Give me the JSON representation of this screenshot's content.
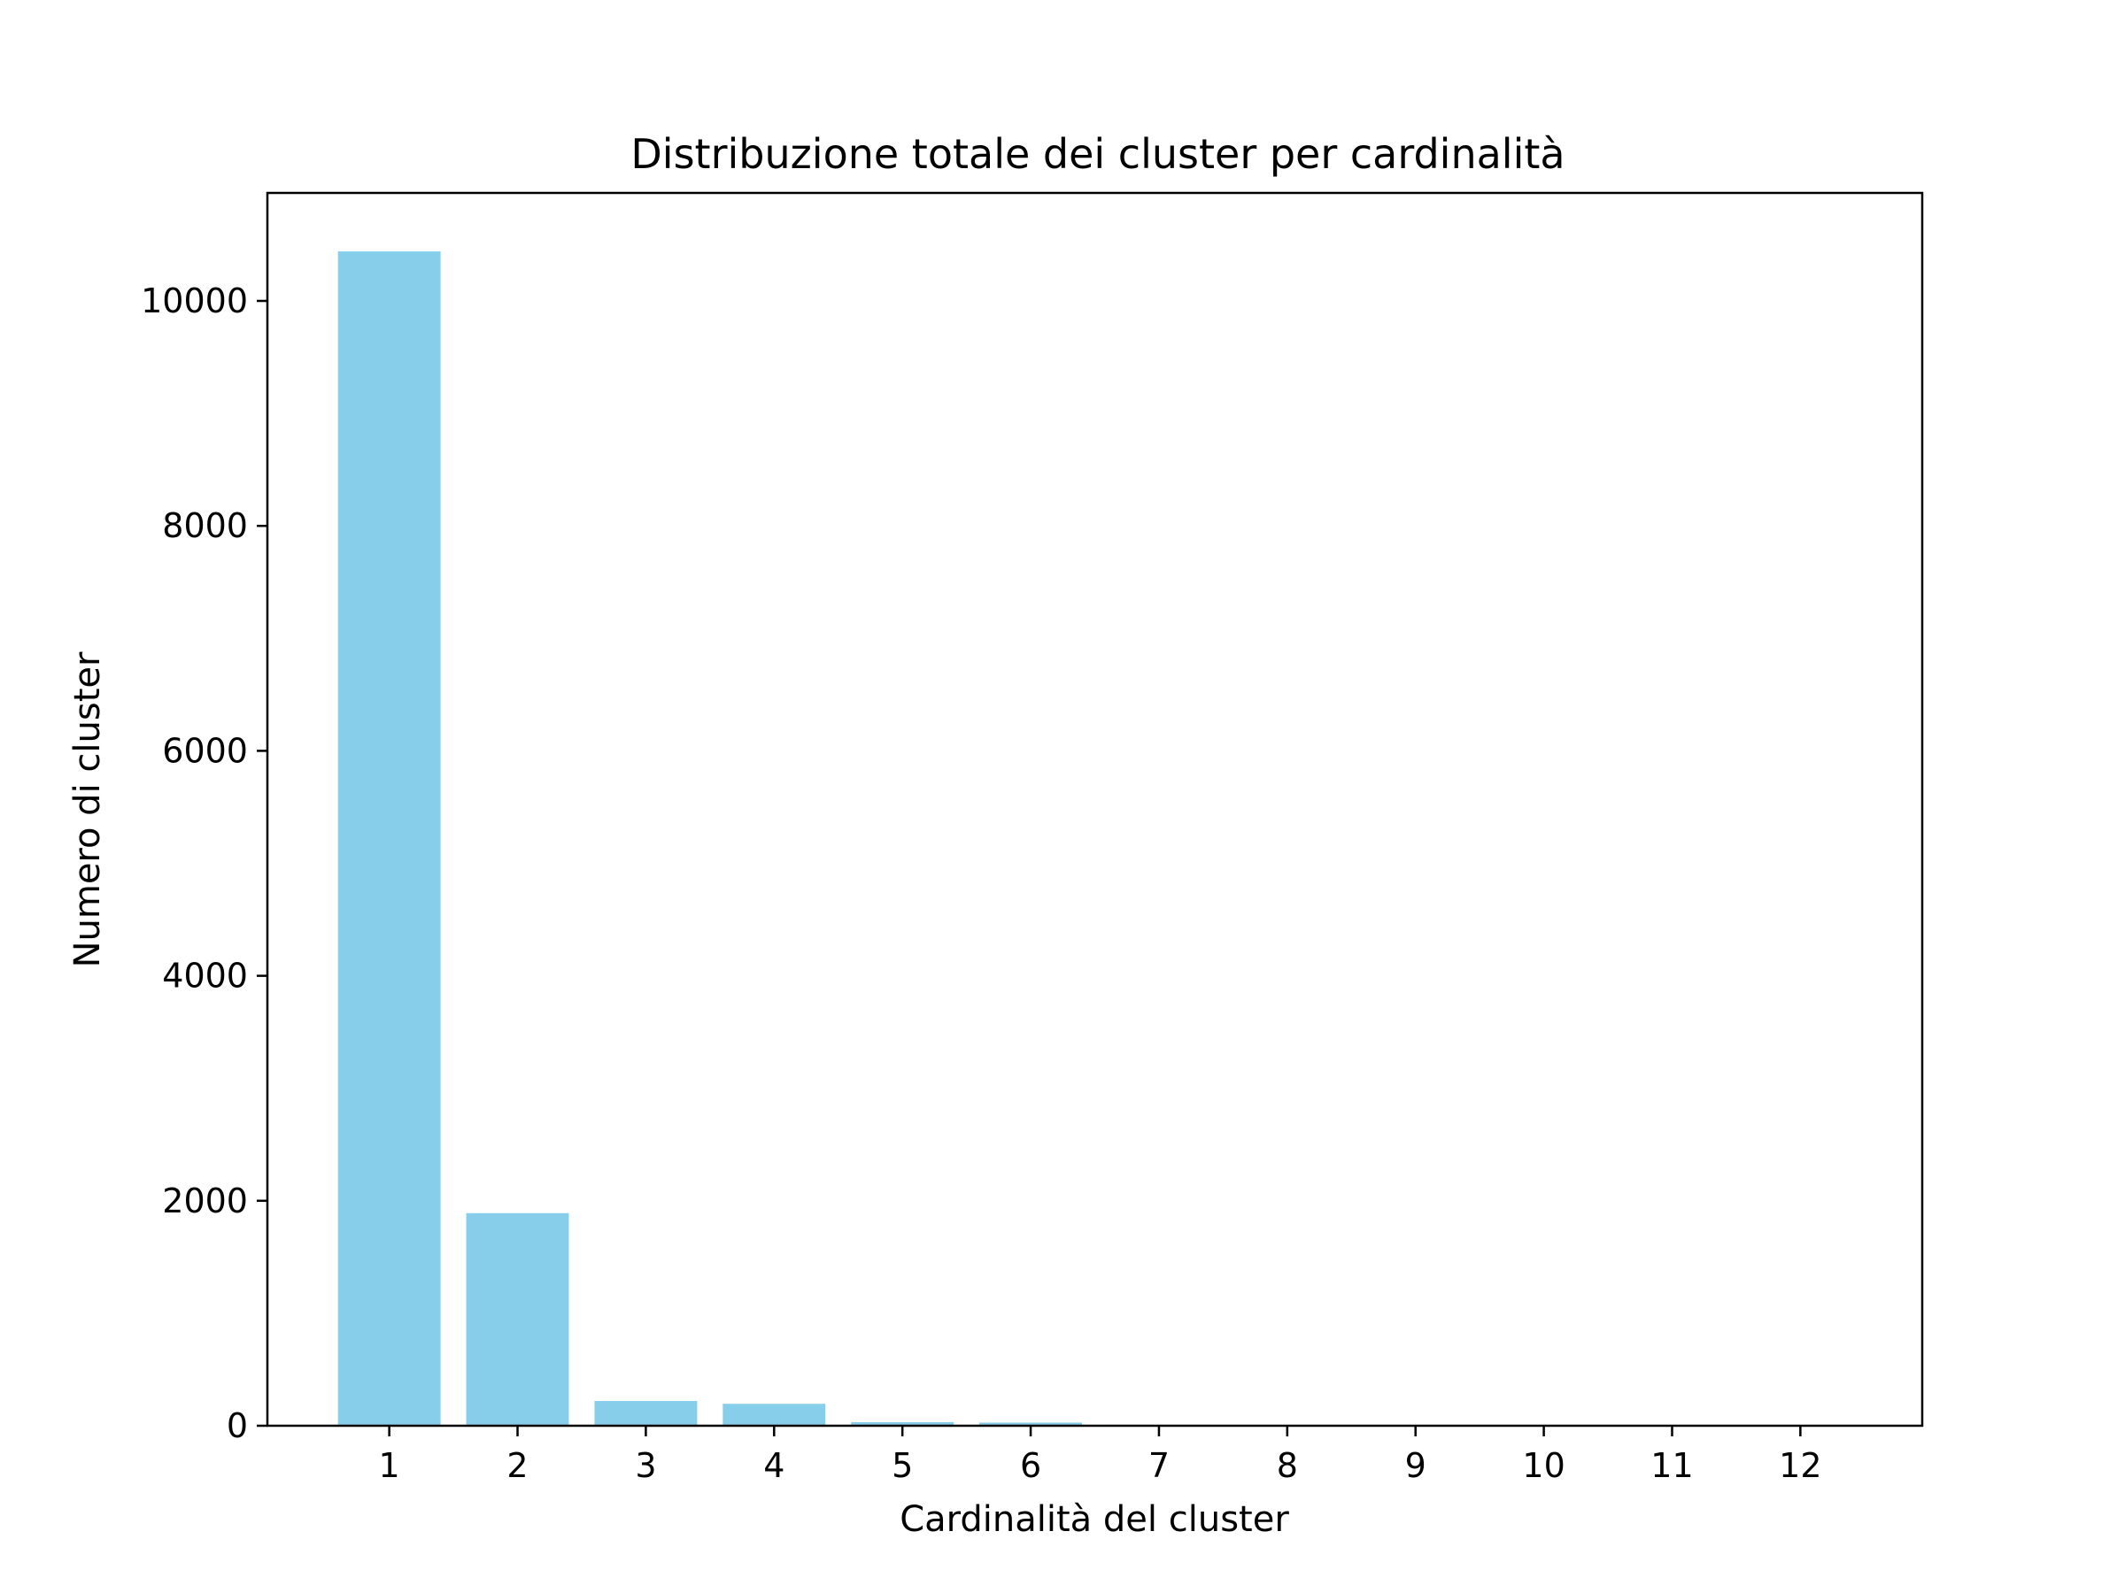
{
  "chart_data": {
    "type": "bar",
    "title": "Distribuzione totale dei cluster per cardinalità",
    "xlabel": "Cardinalità del cluster",
    "ylabel": "Numero di cluster",
    "categories": [
      "1",
      "2",
      "3",
      "4",
      "5",
      "6",
      "7",
      "8",
      "9",
      "10",
      "11",
      "12"
    ],
    "values": [
      10440,
      1890,
      220,
      195,
      32,
      28,
      8,
      5,
      3,
      2,
      1,
      1
    ],
    "yticks": [
      0,
      2000,
      4000,
      6000,
      8000,
      10000
    ],
    "ylim": [
      0,
      10960
    ],
    "xlim": [
      0.05,
      12.95
    ],
    "bar_color": "#87ceeb",
    "grid": false,
    "legend": false
  }
}
